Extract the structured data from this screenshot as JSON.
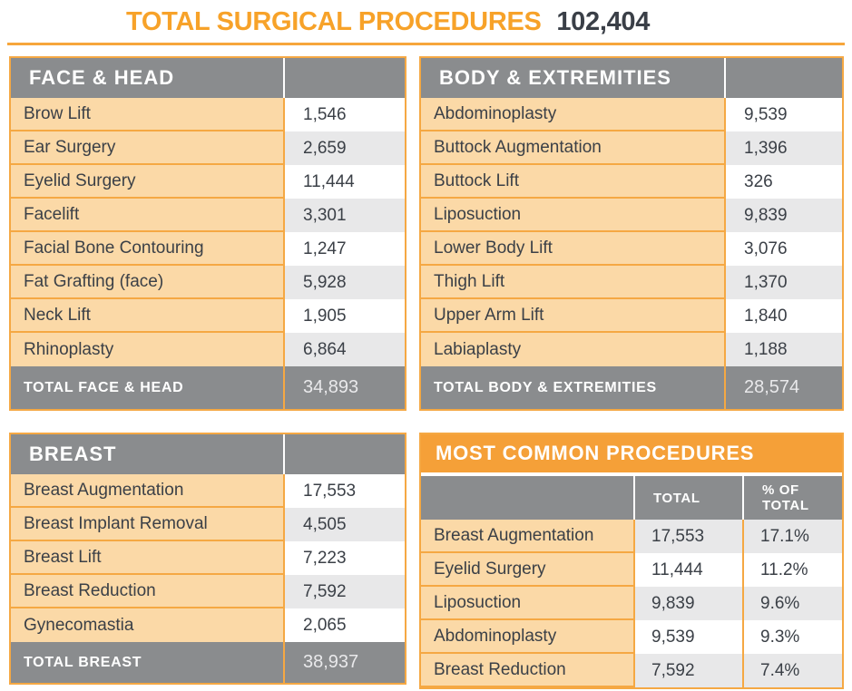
{
  "header": {
    "title": "TOTAL SURGICAL PROCEDURES",
    "total_value": "102,404"
  },
  "colors": {
    "orange": "#F7A229",
    "orange_border": "#F5A843",
    "peach": "#FBD9A7",
    "gray_header": "#8A8C8E",
    "value_alt_gray": "#E8E8E9",
    "dark_text": "#3B4047"
  },
  "tables": {
    "face_head": {
      "title": "FACE & HEAD",
      "rows": [
        {
          "label": "Brow Lift",
          "value": "1,546"
        },
        {
          "label": "Ear Surgery",
          "value": "2,659"
        },
        {
          "label": "Eyelid Surgery",
          "value": "11,444"
        },
        {
          "label": "Facelift",
          "value": "3,301"
        },
        {
          "label": "Facial Bone Contouring",
          "value": "1,247"
        },
        {
          "label": "Fat Grafting (face)",
          "value": "5,928"
        },
        {
          "label": "Neck Lift",
          "value": "1,905"
        },
        {
          "label": "Rhinoplasty",
          "value": "6,864"
        }
      ],
      "total": {
        "label": "TOTAL FACE & HEAD",
        "value": "34,893"
      }
    },
    "body_extremities": {
      "title": "BODY & EXTREMITIES",
      "rows": [
        {
          "label": "Abdominoplasty",
          "value": "9,539"
        },
        {
          "label": "Buttock Augmentation",
          "value": "1,396"
        },
        {
          "label": "Buttock Lift",
          "value": "326"
        },
        {
          "label": "Liposuction",
          "value": "9,839"
        },
        {
          "label": "Lower Body Lift",
          "value": "3,076"
        },
        {
          "label": "Thigh Lift",
          "value": "1,370"
        },
        {
          "label": "Upper Arm Lift",
          "value": "1,840"
        },
        {
          "label": "Labiaplasty",
          "value": "1,188"
        }
      ],
      "total": {
        "label": "TOTAL BODY & EXTREMITIES",
        "value": "28,574"
      }
    },
    "breast": {
      "title": "BREAST",
      "rows": [
        {
          "label": "Breast Augmentation",
          "value": "17,553"
        },
        {
          "label": "Breast Implant Removal",
          "value": "4,505"
        },
        {
          "label": "Breast Lift",
          "value": "7,223"
        },
        {
          "label": "Breast Reduction",
          "value": "7,592"
        },
        {
          "label": "Gynecomastia",
          "value": "2,065"
        }
      ],
      "total": {
        "label": "TOTAL BREAST",
        "value": "38,937"
      }
    },
    "most_common": {
      "title": "MOST COMMON PROCEDURES",
      "col_total": "TOTAL",
      "col_pct": "% OF\nTOTAL",
      "rows": [
        {
          "label": "Breast Augmentation",
          "total": "17,553",
          "pct": "17.1%"
        },
        {
          "label": "Eyelid Surgery",
          "total": "11,444",
          "pct": "11.2%"
        },
        {
          "label": "Liposuction",
          "total": "9,839",
          "pct": "9.6%"
        },
        {
          "label": "Abdominoplasty",
          "total": "9,539",
          "pct": "9.3%"
        },
        {
          "label": "Breast Reduction",
          "total": "7,592",
          "pct": "7.4%"
        }
      ]
    }
  }
}
